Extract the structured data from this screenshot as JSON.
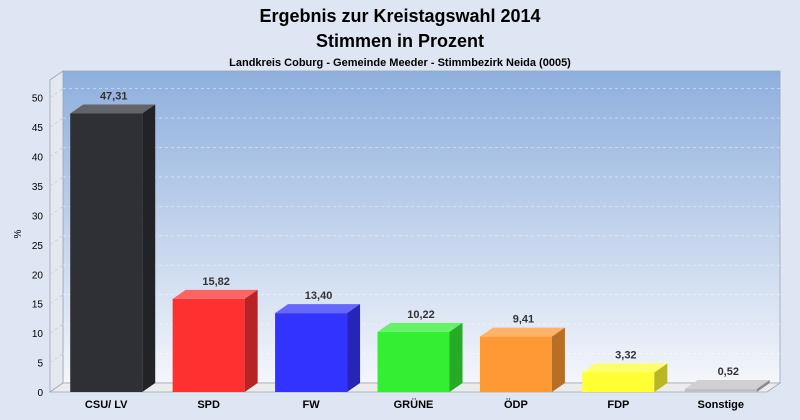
{
  "chart_data": {
    "type": "bar",
    "title": "Ergebnis zur Kreistagswahl 2014",
    "subtitle": "Stimmen in Prozent",
    "caption": "Landkreis Coburg - Gemeinde Meeder - Stimmbezirk Neida (0005)",
    "ylabel": "%",
    "ylim": [
      0,
      53
    ],
    "yticks": [
      0,
      5,
      10,
      15,
      20,
      25,
      30,
      35,
      40,
      45,
      50
    ],
    "categories": [
      "CSU/ LV",
      "SPD",
      "FW",
      "GRÜNE",
      "ÖDP",
      "FDP",
      "Sonstige"
    ],
    "values": [
      47.31,
      15.82,
      13.4,
      10.22,
      9.41,
      3.32,
      0.52
    ],
    "value_labels": [
      "47,31",
      "15,82",
      "13,40",
      "10,22",
      "9,41",
      "3,32",
      "0,52"
    ],
    "colors": [
      "#2e3036",
      "#ff3030",
      "#3333ff",
      "#33ee33",
      "#ff9933",
      "#ffff33",
      "#c0c0c0"
    ],
    "grid": true,
    "legend": "none"
  }
}
